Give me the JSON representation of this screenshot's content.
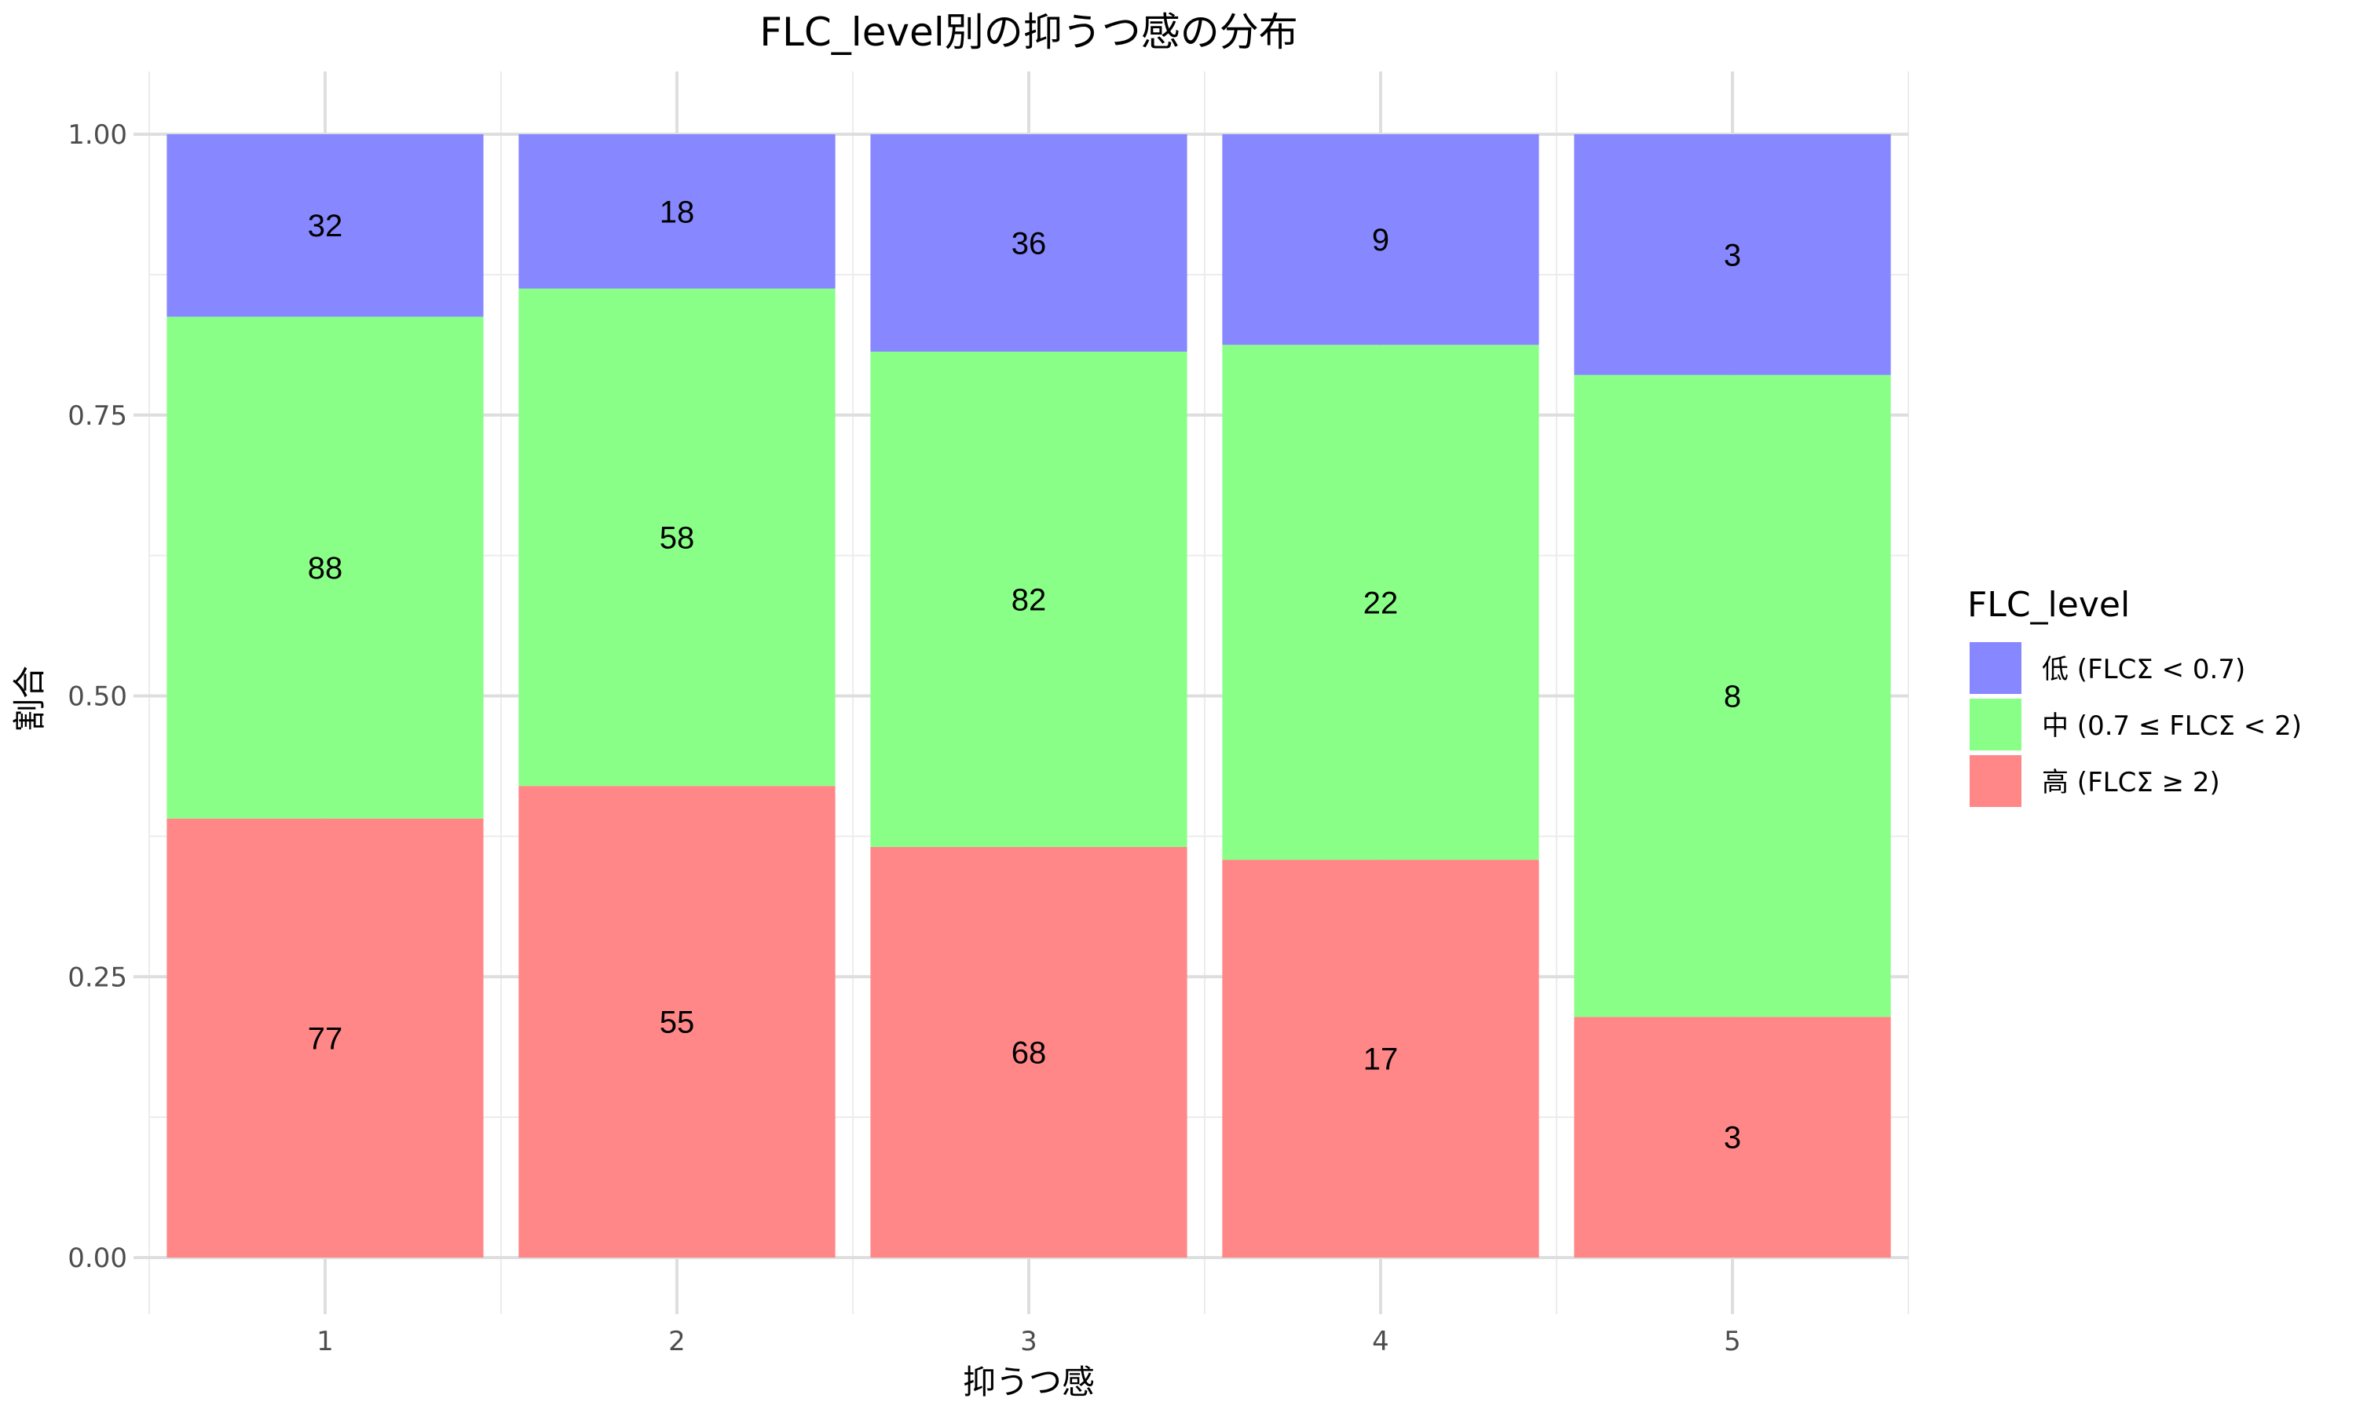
{
  "chart_data": {
    "type": "bar",
    "stacked": "percent",
    "title": "FLC_level別の抑うつ感の分布",
    "xlabel": "抑うつ感",
    "ylabel": "割合",
    "categories": [
      "1",
      "2",
      "3",
      "4",
      "5"
    ],
    "ylim": [
      0,
      1
    ],
    "yticks": [
      "0.00",
      "0.25",
      "0.50",
      "0.75",
      "1.00"
    ],
    "grid": true,
    "legend_position": "right",
    "legend_title": "FLC_level",
    "series": [
      {
        "name": "高 (FLCΣ ≥ 2)",
        "color": "#FF8787",
        "values": [
          77,
          55,
          68,
          17,
          3
        ]
      },
      {
        "name": "中 (0.7 ≤ FLCΣ < 2)",
        "color": "#8AFF87",
        "values": [
          88,
          58,
          82,
          22,
          8
        ]
      },
      {
        "name": "低 (FLCΣ < 0.7)",
        "color": "#8787FF",
        "values": [
          32,
          18,
          36,
          9,
          3
        ]
      }
    ],
    "legend_order": [
      2,
      1,
      0
    ]
  }
}
